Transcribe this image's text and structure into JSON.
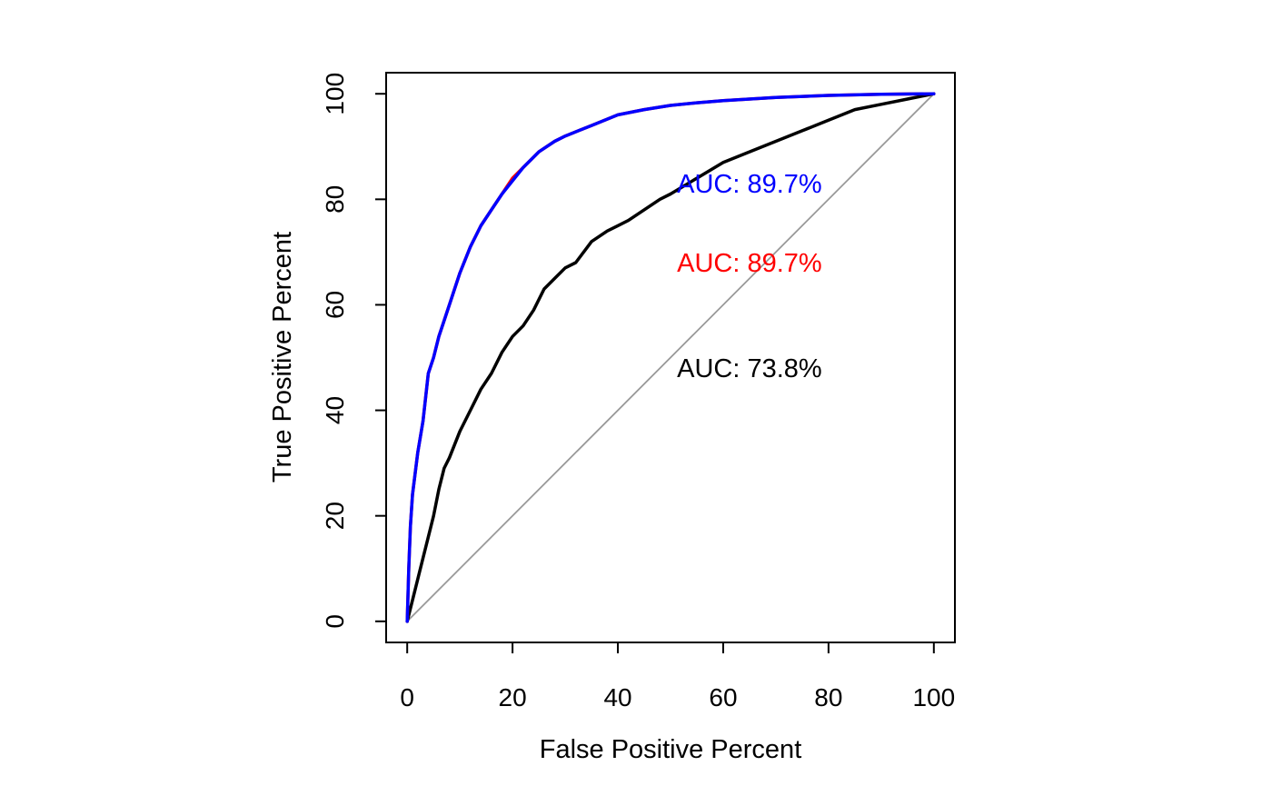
{
  "chart_data": {
    "type": "line",
    "title": "",
    "xlabel": "False Positive Percent",
    "ylabel": "True Positive Percent",
    "xlim": [
      -4,
      104
    ],
    "ylim": [
      -4,
      104
    ],
    "xticks": [
      "0",
      "20",
      "40",
      "60",
      "80",
      "100"
    ],
    "yticks": [
      "0",
      "20",
      "40",
      "60",
      "80",
      "100"
    ],
    "grid": false,
    "legend": "none",
    "reference_line": {
      "x": [
        0,
        100
      ],
      "y": [
        0,
        100
      ],
      "color": "#999999"
    },
    "annotations": [
      {
        "text": "AUC: 89.7%",
        "x": 65,
        "y": 83,
        "color": "#0000ff"
      },
      {
        "text": "AUC: 89.7%",
        "x": 65,
        "y": 68,
        "color": "#ff0000"
      },
      {
        "text": "AUC: 73.8%",
        "x": 65,
        "y": 48,
        "color": "#000000"
      }
    ],
    "series": [
      {
        "color": "#000000",
        "x": [
          0,
          0.5,
          1,
          2,
          3,
          4,
          5,
          6,
          7,
          8,
          10,
          12,
          14,
          16,
          18,
          20,
          22,
          24,
          26,
          28,
          30,
          32,
          35,
          38,
          40,
          42,
          45,
          48,
          50,
          55,
          60,
          65,
          70,
          75,
          80,
          85,
          90,
          95,
          100
        ],
        "y": [
          0,
          2,
          4,
          8,
          12,
          16,
          20,
          25,
          29,
          31,
          36,
          40,
          44,
          47,
          51,
          54,
          56,
          59,
          63,
          65,
          67,
          68,
          72,
          74,
          75,
          76,
          78,
          80,
          81,
          84,
          87,
          89,
          91,
          93,
          95,
          97,
          98,
          99,
          100
        ]
      },
      {
        "color": "#ff0000",
        "x": [
          0,
          0.3,
          0.6,
          1,
          1.5,
          2,
          3,
          4,
          5,
          6,
          7,
          8,
          10,
          12,
          14,
          16,
          18,
          20,
          22,
          25,
          28,
          30,
          35,
          40,
          45,
          50,
          55,
          60,
          70,
          80,
          90,
          100
        ],
        "y": [
          0,
          10,
          18,
          24,
          28,
          32,
          38,
          47,
          50,
          54,
          57,
          60,
          66,
          71,
          75,
          78,
          81,
          84,
          86,
          89,
          91,
          92,
          94,
          96,
          97,
          97.8,
          98.3,
          98.7,
          99.3,
          99.7,
          99.9,
          100
        ]
      },
      {
        "color": "#0000ff",
        "x": [
          0,
          0.3,
          0.6,
          1,
          1.5,
          2,
          3,
          4,
          5,
          6,
          7,
          8,
          10,
          12,
          14,
          16,
          18,
          20,
          22,
          25,
          28,
          30,
          35,
          40,
          45,
          50,
          55,
          60,
          70,
          80,
          90,
          100
        ],
        "y": [
          0,
          10,
          18,
          24,
          28,
          32,
          38,
          47,
          50,
          54,
          57,
          60,
          66,
          71,
          75,
          78,
          81,
          83.5,
          86,
          89,
          91,
          92,
          94,
          96,
          97,
          97.8,
          98.3,
          98.7,
          99.3,
          99.7,
          99.9,
          100
        ]
      }
    ]
  }
}
